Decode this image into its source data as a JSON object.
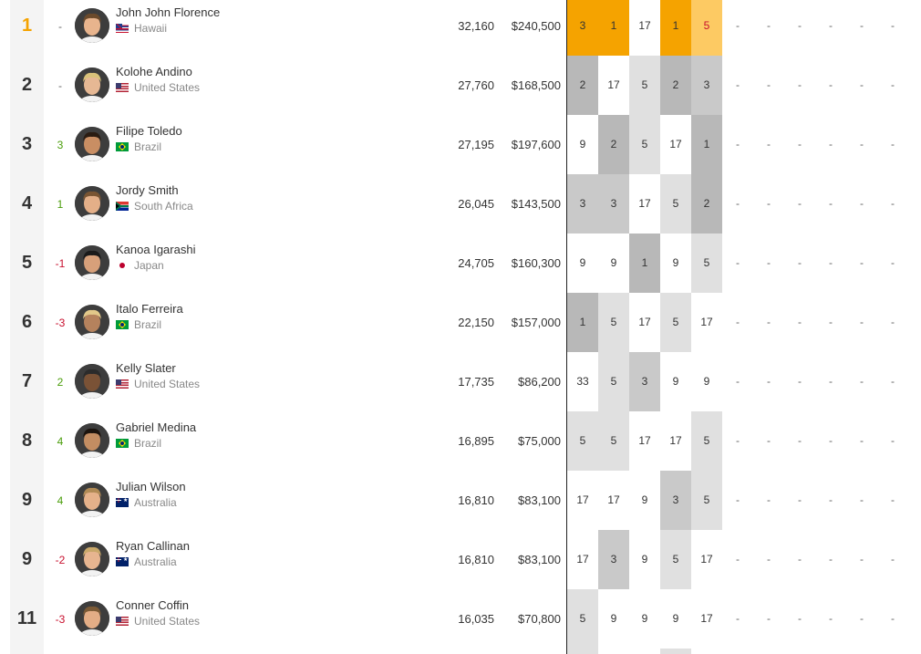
{
  "colors": {
    "gold": "#f5a300",
    "gold_light": "#fdca63",
    "shade_dark": "#b8b8b8",
    "shade_mid": "#c9c9c9",
    "shade_light": "#e0e0e0",
    "white": "#ffffff",
    "up": "#4a9d0a",
    "down": "#c8102e"
  },
  "rows": [
    {
      "rank": "1",
      "change": "-",
      "name": "John John Florence",
      "country": "Hawaii",
      "flag": "hi",
      "points": "32,160",
      "prize": "$240,500",
      "results": [
        {
          "v": "3",
          "bg": "gold"
        },
        {
          "v": "1",
          "bg": "gold"
        },
        {
          "v": "17",
          "bg": "white"
        },
        {
          "v": "1",
          "bg": "gold"
        },
        {
          "v": "5",
          "bg": "gold_light",
          "dropped": true
        },
        {
          "v": "-"
        },
        {
          "v": "-"
        },
        {
          "v": "-"
        },
        {
          "v": "-"
        },
        {
          "v": "-"
        },
        {
          "v": "-"
        }
      ]
    },
    {
      "rank": "2",
      "change": "-",
      "name": "Kolohe Andino",
      "country": "United States",
      "flag": "us",
      "points": "27,760",
      "prize": "$168,500",
      "results": [
        {
          "v": "2",
          "bg": "shade_dark"
        },
        {
          "v": "17",
          "bg": "white"
        },
        {
          "v": "5",
          "bg": "shade_light"
        },
        {
          "v": "2",
          "bg": "shade_dark"
        },
        {
          "v": "3",
          "bg": "shade_mid"
        },
        {
          "v": "-"
        },
        {
          "v": "-"
        },
        {
          "v": "-"
        },
        {
          "v": "-"
        },
        {
          "v": "-"
        },
        {
          "v": "-"
        }
      ]
    },
    {
      "rank": "3",
      "change": "3",
      "name": "Filipe Toledo",
      "country": "Brazil",
      "flag": "br",
      "points": "27,195",
      "prize": "$197,600",
      "results": [
        {
          "v": "9",
          "bg": "white"
        },
        {
          "v": "2",
          "bg": "shade_dark"
        },
        {
          "v": "5",
          "bg": "shade_light"
        },
        {
          "v": "17",
          "bg": "white"
        },
        {
          "v": "1",
          "bg": "shade_dark"
        },
        {
          "v": "-"
        },
        {
          "v": "-"
        },
        {
          "v": "-"
        },
        {
          "v": "-"
        },
        {
          "v": "-"
        },
        {
          "v": "-"
        }
      ]
    },
    {
      "rank": "4",
      "change": "1",
      "name": "Jordy Smith",
      "country": "South Africa",
      "flag": "za",
      "points": "26,045",
      "prize": "$143,500",
      "results": [
        {
          "v": "3",
          "bg": "shade_mid"
        },
        {
          "v": "3",
          "bg": "shade_mid"
        },
        {
          "v": "17",
          "bg": "white"
        },
        {
          "v": "5",
          "bg": "shade_light"
        },
        {
          "v": "2",
          "bg": "shade_dark"
        },
        {
          "v": "-"
        },
        {
          "v": "-"
        },
        {
          "v": "-"
        },
        {
          "v": "-"
        },
        {
          "v": "-"
        },
        {
          "v": "-"
        }
      ]
    },
    {
      "rank": "5",
      "change": "-1",
      "name": "Kanoa Igarashi",
      "country": "Japan",
      "flag": "jp",
      "points": "24,705",
      "prize": "$160,300",
      "results": [
        {
          "v": "9",
          "bg": "white"
        },
        {
          "v": "9",
          "bg": "white"
        },
        {
          "v": "1",
          "bg": "shade_dark"
        },
        {
          "v": "9",
          "bg": "white"
        },
        {
          "v": "5",
          "bg": "shade_light"
        },
        {
          "v": "-"
        },
        {
          "v": "-"
        },
        {
          "v": "-"
        },
        {
          "v": "-"
        },
        {
          "v": "-"
        },
        {
          "v": "-"
        }
      ]
    },
    {
      "rank": "6",
      "change": "-3",
      "name": "Italo Ferreira",
      "country": "Brazil",
      "flag": "br",
      "points": "22,150",
      "prize": "$157,000",
      "results": [
        {
          "v": "1",
          "bg": "shade_dark"
        },
        {
          "v": "5",
          "bg": "shade_light"
        },
        {
          "v": "17",
          "bg": "white"
        },
        {
          "v": "5",
          "bg": "shade_light"
        },
        {
          "v": "17",
          "bg": "white"
        },
        {
          "v": "-"
        },
        {
          "v": "-"
        },
        {
          "v": "-"
        },
        {
          "v": "-"
        },
        {
          "v": "-"
        },
        {
          "v": "-"
        }
      ]
    },
    {
      "rank": "7",
      "change": "2",
      "name": "Kelly Slater",
      "country": "United States",
      "flag": "us",
      "points": "17,735",
      "prize": "$86,200",
      "results": [
        {
          "v": "33",
          "bg": "white"
        },
        {
          "v": "5",
          "bg": "shade_light"
        },
        {
          "v": "3",
          "bg": "shade_mid"
        },
        {
          "v": "9",
          "bg": "white"
        },
        {
          "v": "9",
          "bg": "white"
        },
        {
          "v": "-"
        },
        {
          "v": "-"
        },
        {
          "v": "-"
        },
        {
          "v": "-"
        },
        {
          "v": "-"
        },
        {
          "v": "-"
        }
      ]
    },
    {
      "rank": "8",
      "change": "4",
      "name": "Gabriel Medina",
      "country": "Brazil",
      "flag": "br",
      "points": "16,895",
      "prize": "$75,000",
      "results": [
        {
          "v": "5",
          "bg": "shade_light"
        },
        {
          "v": "5",
          "bg": "shade_light"
        },
        {
          "v": "17",
          "bg": "white"
        },
        {
          "v": "17",
          "bg": "white"
        },
        {
          "v": "5",
          "bg": "shade_light"
        },
        {
          "v": "-"
        },
        {
          "v": "-"
        },
        {
          "v": "-"
        },
        {
          "v": "-"
        },
        {
          "v": "-"
        },
        {
          "v": "-"
        }
      ]
    },
    {
      "rank": "9",
      "change": "4",
      "name": "Julian Wilson",
      "country": "Australia",
      "flag": "au",
      "points": "16,810",
      "prize": "$83,100",
      "results": [
        {
          "v": "17",
          "bg": "white"
        },
        {
          "v": "17",
          "bg": "white"
        },
        {
          "v": "9",
          "bg": "white"
        },
        {
          "v": "3",
          "bg": "shade_mid"
        },
        {
          "v": "5",
          "bg": "shade_light"
        },
        {
          "v": "-"
        },
        {
          "v": "-"
        },
        {
          "v": "-"
        },
        {
          "v": "-"
        },
        {
          "v": "-"
        },
        {
          "v": "-"
        }
      ]
    },
    {
      "rank": "9",
      "change": "-2",
      "name": "Ryan Callinan",
      "country": "Australia",
      "flag": "au",
      "points": "16,810",
      "prize": "$83,100",
      "results": [
        {
          "v": "17",
          "bg": "white"
        },
        {
          "v": "3",
          "bg": "shade_mid"
        },
        {
          "v": "9",
          "bg": "white"
        },
        {
          "v": "5",
          "bg": "shade_light"
        },
        {
          "v": "17",
          "bg": "white"
        },
        {
          "v": "-"
        },
        {
          "v": "-"
        },
        {
          "v": "-"
        },
        {
          "v": "-"
        },
        {
          "v": "-"
        },
        {
          "v": "-"
        }
      ]
    },
    {
      "rank": "11",
      "change": "-3",
      "name": "Conner Coffin",
      "country": "United States",
      "flag": "us",
      "points": "16,035",
      "prize": "$70,800",
      "results": [
        {
          "v": "5",
          "bg": "shade_light"
        },
        {
          "v": "9",
          "bg": "white"
        },
        {
          "v": "9",
          "bg": "white"
        },
        {
          "v": "9",
          "bg": "white"
        },
        {
          "v": "17",
          "bg": "white"
        },
        {
          "v": "-"
        },
        {
          "v": "-"
        },
        {
          "v": "-"
        },
        {
          "v": "-"
        },
        {
          "v": "-"
        },
        {
          "v": "-"
        }
      ]
    }
  ],
  "partial_next_row": [
    {
      "bg": "shade_light"
    },
    {
      "bg": "white"
    },
    {
      "bg": "white"
    },
    {
      "bg": "shade_light"
    },
    {
      "bg": "white"
    }
  ]
}
